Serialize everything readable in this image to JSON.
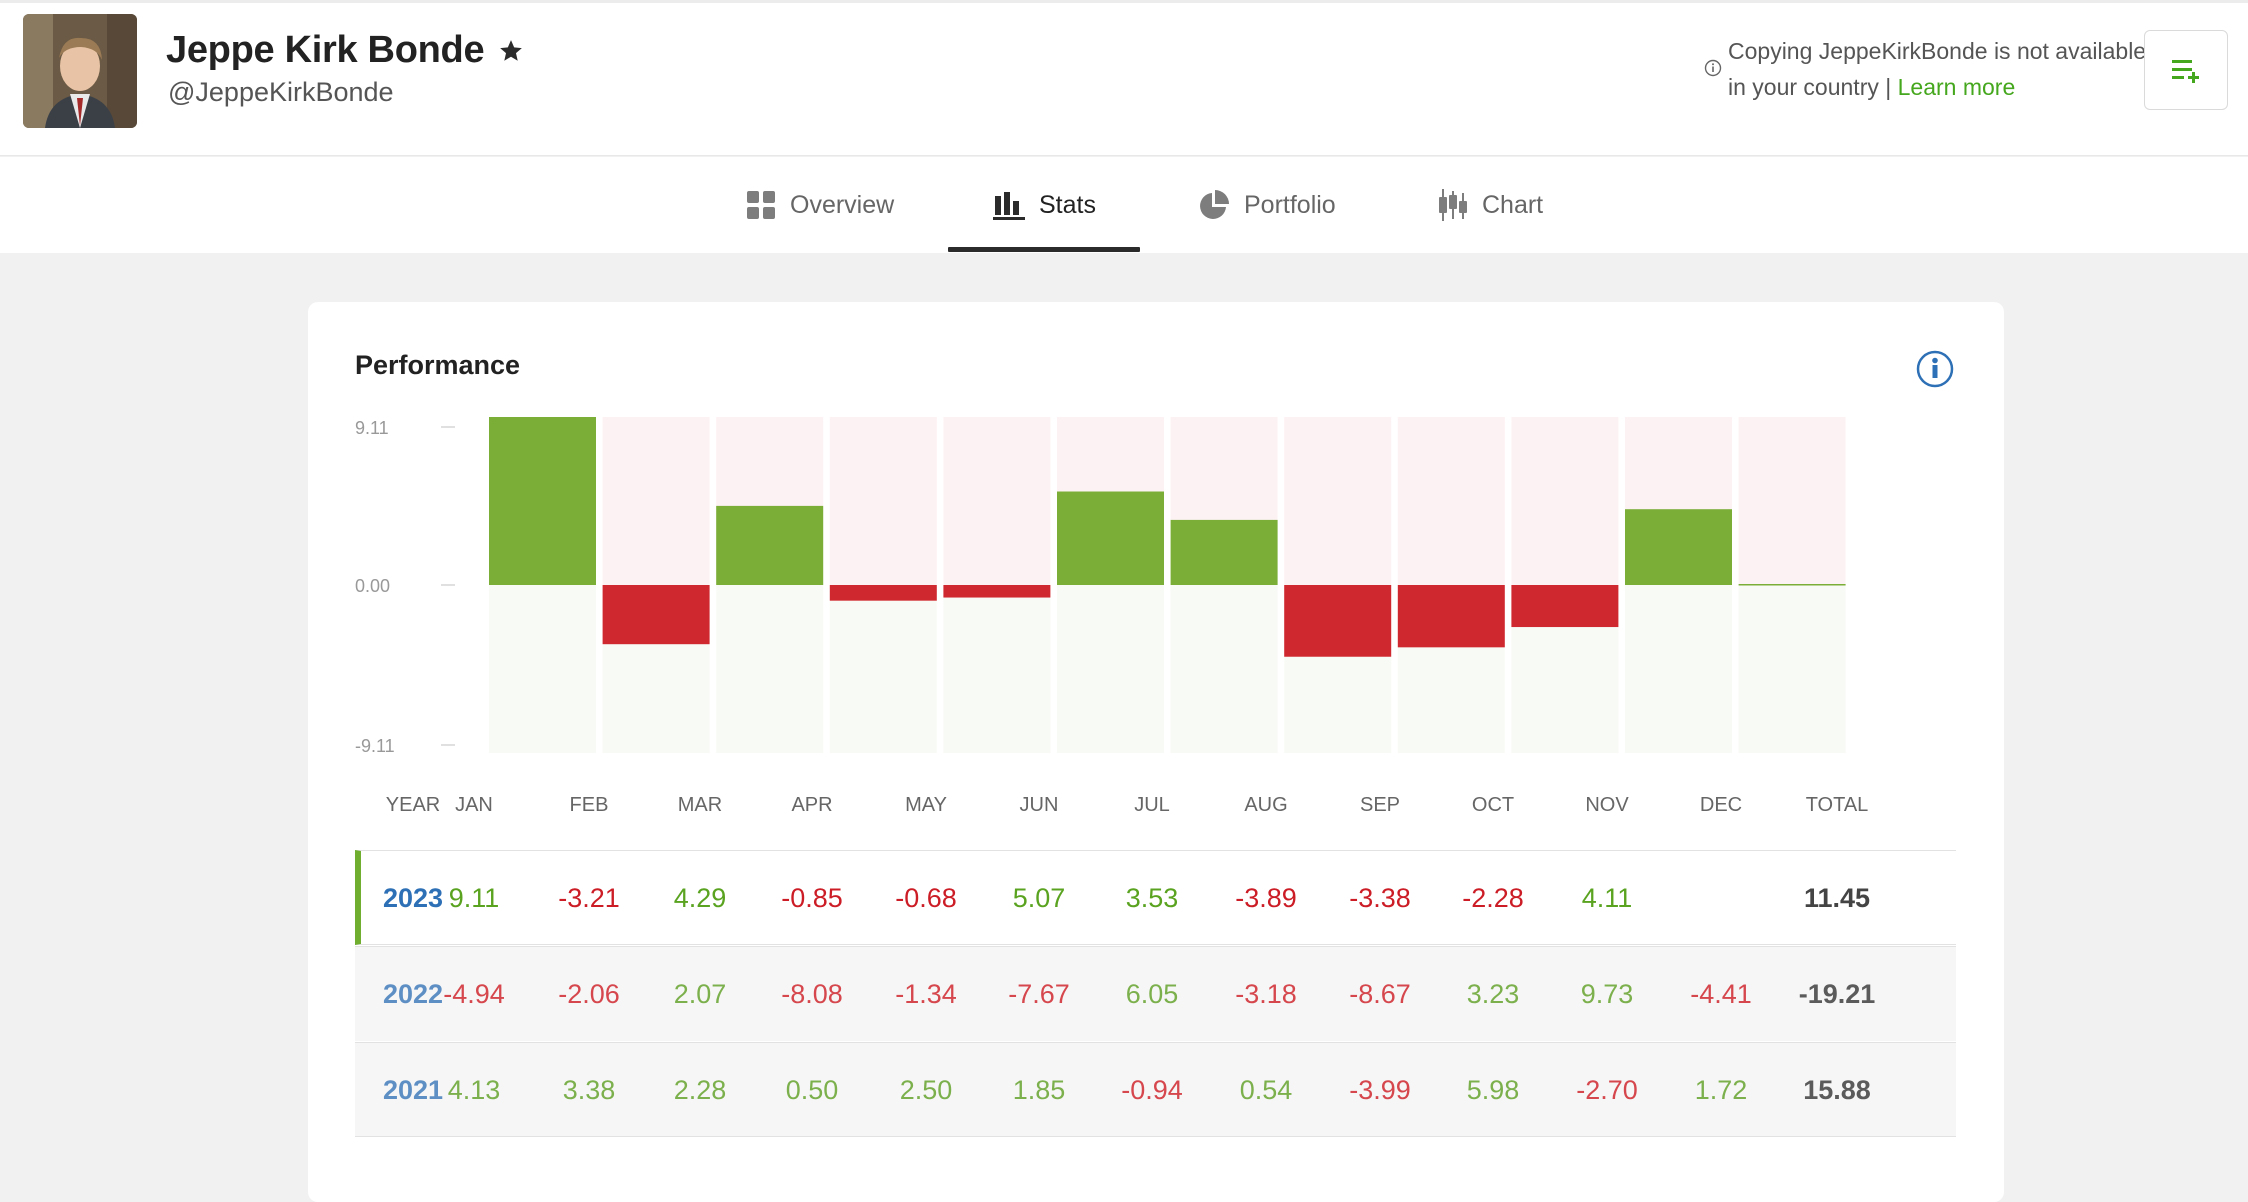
{
  "profile": {
    "name": "Jeppe Kirk Bonde",
    "handle": "@JeppeKirkBonde",
    "notice_text": "Copying JeppeKirkBonde is not available in your country",
    "notice_sep": "|",
    "learn_more": "Learn more"
  },
  "tabs": [
    {
      "label": "Overview",
      "icon": "grid-icon"
    },
    {
      "label": "Stats",
      "icon": "bar-chart-icon",
      "active": true
    },
    {
      "label": "Portfolio",
      "icon": "pie-chart-icon"
    },
    {
      "label": "Chart",
      "icon": "candlestick-icon"
    }
  ],
  "performance": {
    "title": "Performance",
    "columns": [
      "YEAR",
      "JAN",
      "FEB",
      "MAR",
      "APR",
      "MAY",
      "JUN",
      "JUL",
      "AUG",
      "SEP",
      "OCT",
      "NOV",
      "DEC",
      "TOTAL"
    ],
    "rows": [
      {
        "year": "2023",
        "values": [
          "9.11",
          "-3.21",
          "4.29",
          "-0.85",
          "-0.68",
          "5.07",
          "3.53",
          "-3.89",
          "-3.38",
          "-2.28",
          "4.11",
          ""
        ],
        "total": "11.45"
      },
      {
        "year": "2022",
        "values": [
          "-4.94",
          "-2.06",
          "2.07",
          "-8.08",
          "-1.34",
          "-7.67",
          "6.05",
          "-3.18",
          "-8.67",
          "3.23",
          "9.73",
          "-4.41"
        ],
        "total": "-19.21"
      },
      {
        "year": "2021",
        "values": [
          "4.13",
          "3.38",
          "2.28",
          "0.50",
          "2.50",
          "1.85",
          "-0.94",
          "0.54",
          "-3.99",
          "5.98",
          "-2.70",
          "1.72"
        ],
        "total": "15.88"
      }
    ]
  },
  "chart_data": {
    "type": "bar",
    "categories": [
      "JAN",
      "FEB",
      "MAR",
      "APR",
      "MAY",
      "JUN",
      "JUL",
      "AUG",
      "SEP",
      "OCT",
      "NOV",
      "DEC"
    ],
    "values": [
      9.11,
      -3.21,
      4.29,
      -0.85,
      -0.68,
      5.07,
      3.53,
      -3.89,
      -3.38,
      -2.28,
      4.11,
      0.0
    ],
    "ytick_labels": [
      "9.11",
      "0.00",
      "-9.11"
    ],
    "ylim": [
      -9.11,
      9.11
    ],
    "colors": {
      "positive": "#7aae37",
      "negative": "#d0282f",
      "pos_bg": "#f8fbf5",
      "neg_bg": "#fdf2f3"
    }
  }
}
